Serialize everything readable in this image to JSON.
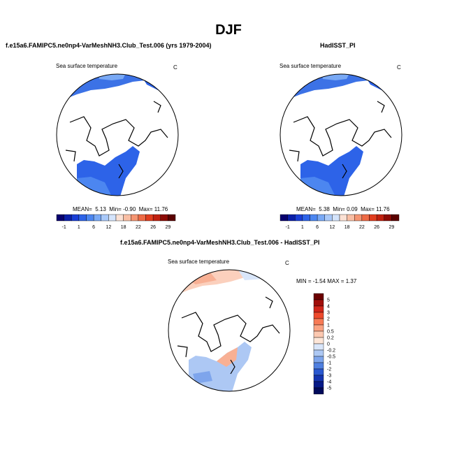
{
  "main_title": "DJF",
  "panels": [
    {
      "id": "model",
      "title": "f.e15a6.FAMIPC5.ne0np4-VarMeshNH3.Club_Test.006 (yrs 1979-2004)",
      "variable": "Sea surface temperature",
      "units": "C",
      "stats": {
        "mean_label": "MEAN=",
        "mean": "5.13",
        "min_label": "Min=",
        "min": "-0.90",
        "max_label": "Max=",
        "max": "11.76"
      }
    },
    {
      "id": "obs",
      "title": "HadISST_PI",
      "variable": "Sea surface temperature",
      "units": "C",
      "stats": {
        "mean_label": "MEAN=",
        "mean": "5.38",
        "min_label": "Min=",
        "min": "0.09",
        "max_label": "Max=",
        "max": "11.76"
      }
    },
    {
      "id": "diff",
      "title": "f.e15a6.FAMIPC5.ne0np4-VarMeshNH3.Club_Test.006 - HadISST_PI",
      "variable": "Sea surface temperature",
      "units": "C",
      "stats_text": "MIN = -1.54 MAX = 1.37"
    }
  ],
  "colorbar_abs": {
    "tick_labels": [
      "-1",
      "1",
      "6",
      "12",
      "18",
      "22",
      "26",
      "29"
    ],
    "colors": [
      "#08006e",
      "#0a1fa8",
      "#1a3fd6",
      "#2d63e8",
      "#4c86f0",
      "#79a9f5",
      "#a9c9f9",
      "#d4e4fb",
      "#fbe1d4",
      "#f8bea4",
      "#f59572",
      "#ee6a45",
      "#e03d1e",
      "#c0200f",
      "#8b0a05",
      "#5a0000"
    ]
  },
  "colorbar_diff": {
    "levels": [
      "5",
      "4",
      "3",
      "2",
      "1",
      "0.5",
      "0.2",
      "0",
      "-0.2",
      "-0.5",
      "-1",
      "-2",
      "-3",
      "-4",
      "-5"
    ],
    "colors": [
      "#6b0000",
      "#a00e0a",
      "#d0251a",
      "#ee4a2d",
      "#f77a55",
      "#faa282",
      "#fcc8b0",
      "#fde6d8",
      "#d9e6fa",
      "#adc8f4",
      "#7ea5ec",
      "#4f7fe0",
      "#2a58d0",
      "#1434b0",
      "#061a88",
      "#000a5a"
    ]
  },
  "chart_data": [
    {
      "type": "heatmap",
      "title": "f.e15a6.FAMIPC5.ne0np4-VarMeshNH3.Club_Test.006 (yrs 1979-2004)",
      "subtitle": "Sea surface temperature",
      "units": "C",
      "projection": "polar stereographic (North Pole)",
      "mean": 5.13,
      "min": -0.9,
      "max": 11.76,
      "colorbar_levels": [
        -1,
        1,
        6,
        12,
        18,
        22,
        26,
        29
      ]
    },
    {
      "type": "heatmap",
      "title": "HadISST_PI",
      "subtitle": "Sea surface temperature",
      "units": "C",
      "projection": "polar stereographic (North Pole)",
      "mean": 5.38,
      "min": 0.09,
      "max": 11.76,
      "colorbar_levels": [
        -1,
        1,
        6,
        12,
        18,
        22,
        26,
        29
      ]
    },
    {
      "type": "heatmap",
      "title": "f.e15a6.FAMIPC5.ne0np4-VarMeshNH3.Club_Test.006 - HadISST_PI",
      "subtitle": "Sea surface temperature",
      "units": "C",
      "projection": "polar stereographic (North Pole)",
      "min": -1.54,
      "max": 1.37,
      "colorbar_levels": [
        -5,
        -4,
        -3,
        -2,
        -1,
        -0.5,
        -0.2,
        0,
        0.2,
        0.5,
        1,
        2,
        3,
        4,
        5
      ]
    }
  ]
}
